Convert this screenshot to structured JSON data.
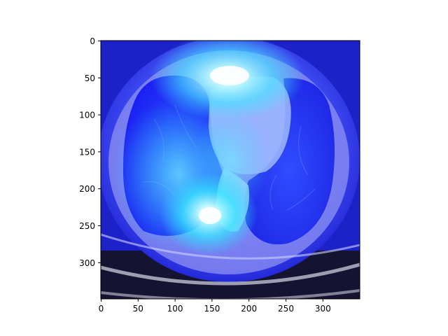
{
  "figure": {
    "x_ticks": [
      "0",
      "50",
      "100",
      "150",
      "200",
      "250",
      "300"
    ],
    "y_ticks": [
      "0",
      "50",
      "100",
      "150",
      "200",
      "250",
      "300"
    ]
  },
  "colors": {
    "background_outside_scan": "#0a0a1e",
    "scan_tint": "#2a2cf0",
    "heat_highlight": "#3fe9ff",
    "hotspot": "#ffffff"
  }
}
